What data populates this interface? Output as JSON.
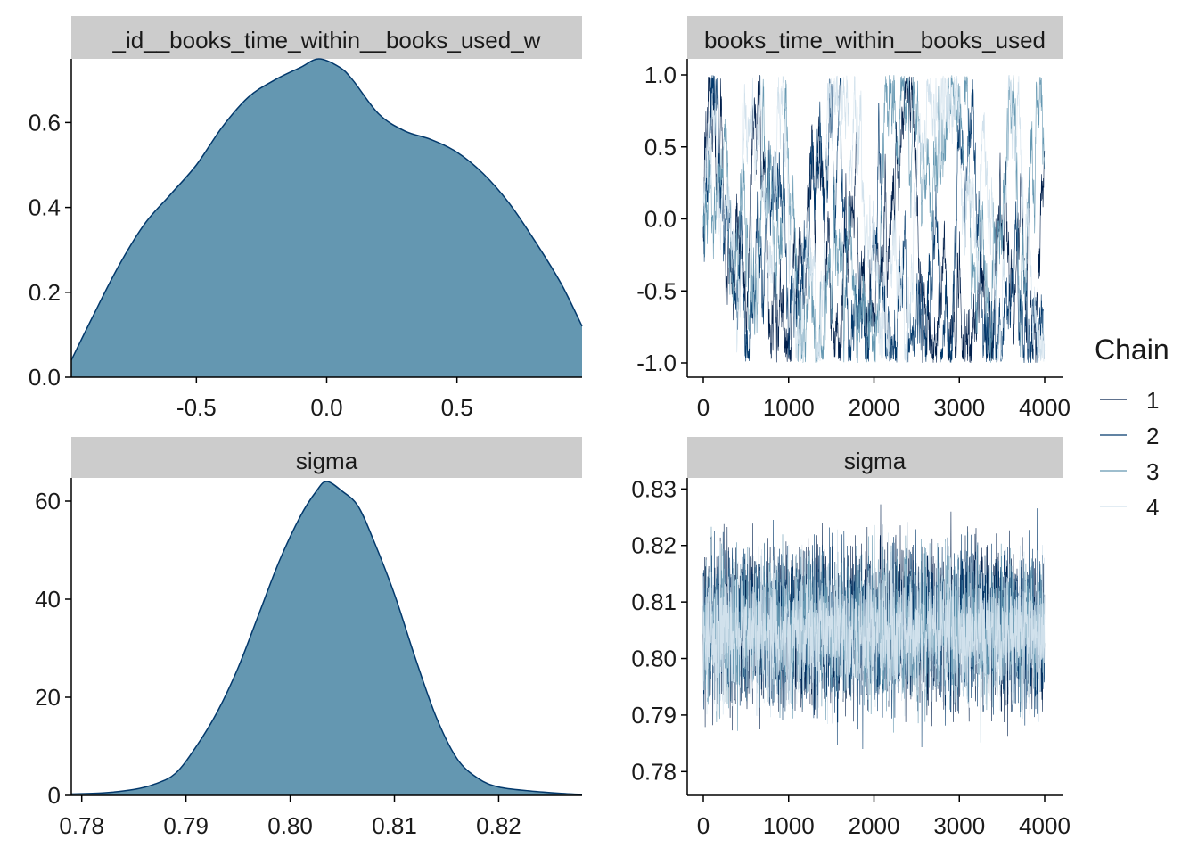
{
  "colors": {
    "strip_bg": "#cccccc",
    "density_fill": "#6497b1",
    "density_line": "#03396c",
    "chain1": "#011f4b",
    "chain2": "#03396c",
    "chain3": "#6497b1",
    "chain4": "#d1e1ec"
  },
  "legend": {
    "title": "Chain",
    "items": [
      "1",
      "2",
      "3",
      "4"
    ]
  },
  "chart_data": [
    {
      "type": "area",
      "panel": "density",
      "strip_label": "_id__books_time_within__books_used_w",
      "xlim": [
        -0.98,
        0.98
      ],
      "ylim": [
        0,
        0.75
      ],
      "x_ticks": [
        -0.5,
        0.0,
        0.5
      ],
      "x_tick_labels": [
        "-0.5",
        "0.0",
        "0.5"
      ],
      "y_ticks": [
        0.0,
        0.2,
        0.4,
        0.6
      ],
      "y_tick_labels": [
        "0.0",
        "0.2",
        "0.4",
        "0.6"
      ],
      "x": [
        -0.98,
        -0.9,
        -0.8,
        -0.7,
        -0.6,
        -0.5,
        -0.4,
        -0.3,
        -0.2,
        -0.1,
        -0.03,
        0.05,
        0.1,
        0.2,
        0.3,
        0.4,
        0.5,
        0.6,
        0.7,
        0.8,
        0.9,
        0.98
      ],
      "y": [
        0.04,
        0.14,
        0.26,
        0.36,
        0.43,
        0.5,
        0.59,
        0.66,
        0.7,
        0.73,
        0.75,
        0.73,
        0.7,
        0.62,
        0.58,
        0.56,
        0.53,
        0.48,
        0.41,
        0.32,
        0.22,
        0.12
      ]
    },
    {
      "type": "line",
      "panel": "trace",
      "strip_label": "books_time_within__books_used",
      "xlim": [
        0,
        4000
      ],
      "ylim": [
        -1.0,
        1.0
      ],
      "x_ticks": [
        0,
        1000,
        2000,
        3000,
        4000
      ],
      "x_tick_labels": [
        "0",
        "1000",
        "2000",
        "3000",
        "4000"
      ],
      "y_ticks": [
        -1.0,
        -0.5,
        0.0,
        0.5,
        1.0
      ],
      "y_tick_labels": [
        "-1.0",
        "-0.5",
        "0.0",
        "0.5",
        "1.0"
      ],
      "series": [
        {
          "name": "1",
          "iterations": 4000,
          "range": [
            -1.0,
            1.0
          ]
        },
        {
          "name": "2",
          "iterations": 4000,
          "range": [
            -1.0,
            1.0
          ]
        },
        {
          "name": "3",
          "iterations": 4000,
          "range": [
            -1.0,
            1.0
          ]
        },
        {
          "name": "4",
          "iterations": 4000,
          "range": [
            -1.0,
            1.0
          ]
        }
      ]
    },
    {
      "type": "area",
      "panel": "density",
      "strip_label": "sigma",
      "xlim": [
        0.779,
        0.828
      ],
      "ylim": [
        0,
        64
      ],
      "x_ticks": [
        0.78,
        0.79,
        0.8,
        0.81,
        0.82
      ],
      "x_tick_labels": [
        "0.78",
        "0.79",
        "0.80",
        "0.81",
        "0.82"
      ],
      "y_ticks": [
        0,
        20,
        40,
        60
      ],
      "y_tick_labels": [
        "0",
        "20",
        "40",
        "60"
      ],
      "x": [
        0.779,
        0.782,
        0.785,
        0.787,
        0.789,
        0.791,
        0.793,
        0.795,
        0.797,
        0.799,
        0.801,
        0.8025,
        0.8035,
        0.805,
        0.8065,
        0.808,
        0.81,
        0.812,
        0.814,
        0.816,
        0.818,
        0.82,
        0.823,
        0.826,
        0.828
      ],
      "y": [
        0.3,
        0.5,
        1.2,
        2.3,
        4.5,
        10,
        17,
        26,
        37,
        48,
        57,
        62,
        64,
        62,
        59,
        52,
        41,
        28,
        16,
        7.5,
        3.5,
        1.7,
        0.9,
        0.4,
        0.2
      ]
    },
    {
      "type": "line",
      "panel": "trace",
      "strip_label": "sigma",
      "xlim": [
        0,
        4000
      ],
      "ylim": [
        0.778,
        0.831
      ],
      "x_ticks": [
        0,
        1000,
        2000,
        3000,
        4000
      ],
      "x_tick_labels": [
        "0",
        "1000",
        "2000",
        "3000",
        "4000"
      ],
      "y_ticks": [
        0.78,
        0.79,
        0.8,
        0.81,
        0.82,
        0.83
      ],
      "y_tick_labels": [
        "0.78",
        "0.79",
        "0.80",
        "0.81",
        "0.82",
        "0.83"
      ],
      "series": [
        {
          "name": "1",
          "iterations": 4000,
          "range": [
            0.784,
            0.828
          ]
        },
        {
          "name": "2",
          "iterations": 4000,
          "range": [
            0.784,
            0.827
          ]
        },
        {
          "name": "3",
          "iterations": 4000,
          "range": [
            0.785,
            0.825
          ]
        },
        {
          "name": "4",
          "iterations": 4000,
          "range": [
            0.786,
            0.824
          ]
        }
      ]
    }
  ]
}
